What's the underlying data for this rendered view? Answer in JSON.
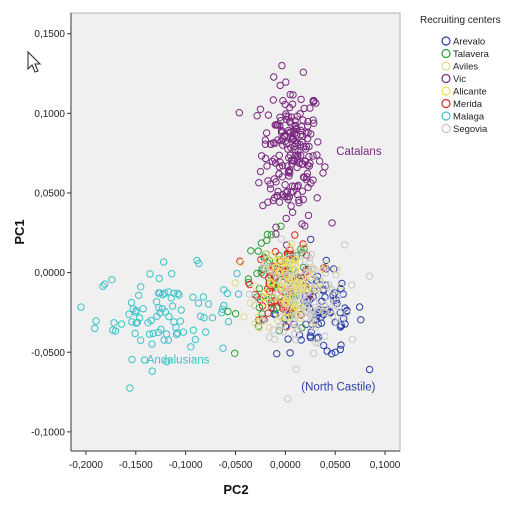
{
  "chart_data": {
    "type": "scatter",
    "xlabel": "PC2",
    "ylabel": "PC1",
    "xlim": [
      -0.215,
      0.115
    ],
    "ylim": [
      -0.112,
      0.163
    ],
    "x_ticks": [
      -0.2,
      -0.15,
      -0.1,
      -0.05,
      0.0,
      0.05,
      0.1
    ],
    "x_tick_labels": [
      "-0,2000",
      "-0,1500",
      "-0,1000",
      "-0,0500",
      "0,0000",
      "0,0500",
      "0,1000"
    ],
    "y_ticks": [
      -0.1,
      -0.05,
      0.0,
      0.05,
      0.1,
      0.15
    ],
    "y_tick_labels": [
      "-0,1000",
      "-0,0500",
      "0,0000",
      "0,0500",
      "0,1000",
      "0,1500"
    ],
    "grid": false,
    "legend_position": "top-right, outside plot",
    "legend": {
      "title": "Recruiting centers",
      "entries": [
        {
          "label": "Arevalo",
          "color": "#2c3fa8"
        },
        {
          "label": "Talavera",
          "color": "#2e9e3a"
        },
        {
          "label": "Aviles",
          "color": "#e0d98c"
        },
        {
          "label": "Vic",
          "color": "#7b2a80"
        },
        {
          "label": "Alicante",
          "color": "#f0e04a"
        },
        {
          "label": "Merida",
          "color": "#d8281f"
        },
        {
          "label": "Malaga",
          "color": "#3cc3c8"
        },
        {
          "label": "Segovia",
          "color": "#c8c8c8"
        }
      ]
    },
    "annotations": [
      {
        "text": "Catalans",
        "x": 0.051,
        "y": 0.074,
        "color": "#7b2a80"
      },
      {
        "text": "Andalusians",
        "x": -0.139,
        "y": -0.057,
        "color": "#3cc3c8"
      },
      {
        "text": "(North Castile)",
        "x": 0.016,
        "y": -0.074,
        "color": "#2c3fa8"
      }
    ],
    "series": [
      {
        "name": "Vic",
        "center": [
          0.006,
          0.075
        ],
        "spread": [
          0.015,
          0.022
        ],
        "count": 200
      },
      {
        "name": "Malaga",
        "center": [
          -0.12,
          -0.025
        ],
        "spread": [
          0.035,
          0.014
        ],
        "count": 90
      },
      {
        "name": "Arevalo",
        "center": [
          0.035,
          -0.025
        ],
        "spread": [
          0.022,
          0.014
        ],
        "count": 90
      },
      {
        "name": "Talavera",
        "center": [
          -0.01,
          -0.01
        ],
        "spread": [
          0.018,
          0.016
        ],
        "count": 70
      },
      {
        "name": "Merida",
        "center": [
          0.0,
          -0.005
        ],
        "spread": [
          0.016,
          0.012
        ],
        "count": 70
      },
      {
        "name": "Segovia",
        "center": [
          0.015,
          -0.015
        ],
        "spread": [
          0.022,
          0.016
        ],
        "count": 140
      },
      {
        "name": "Aviles",
        "center": [
          0.008,
          -0.01
        ],
        "spread": [
          0.02,
          0.015
        ],
        "count": 60
      },
      {
        "name": "Alicante",
        "center": [
          -0.005,
          -0.005
        ],
        "spread": [
          0.015,
          0.012
        ],
        "count": 30
      }
    ]
  },
  "cursor": {
    "icon": "mouse-pointer-icon"
  }
}
